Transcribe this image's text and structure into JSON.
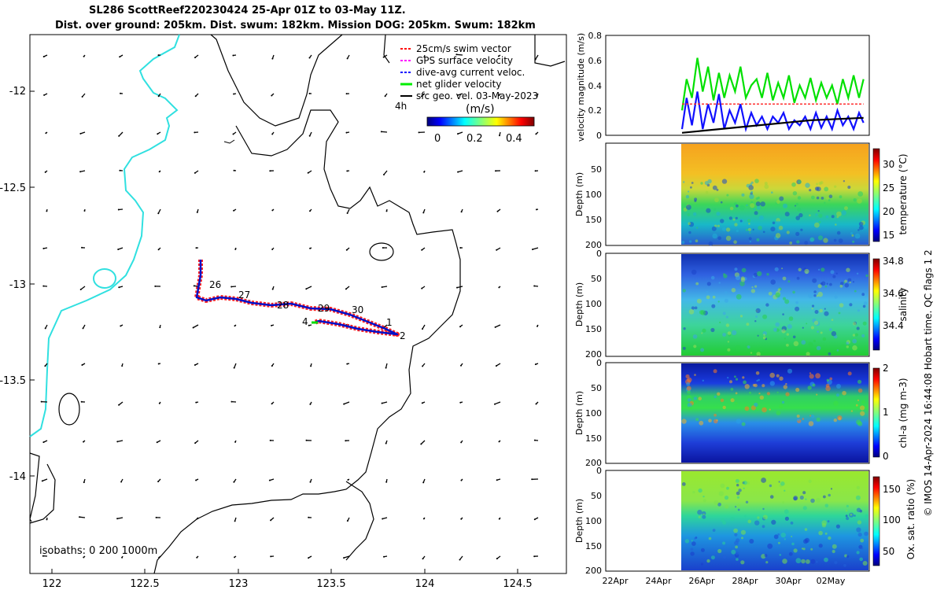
{
  "header": {
    "line1": "SL286 ScottReef220230424 25-Apr 01Z to 03-May 11Z.",
    "line2": "Dist. over ground: 205km. Dist. swum: 182km. Mission DOG: 205km. Swum: 182km"
  },
  "map": {
    "legend": {
      "items": [
        {
          "label": "25cm/s swim vector",
          "color": "#ff0000"
        },
        {
          "label": "GPS surface velocity",
          "color": "#ff00ff"
        },
        {
          "label": "dive-avg current veloc.",
          "color": "#0000ff"
        },
        {
          "label": "net glider velocity",
          "color": "#00ee00"
        },
        {
          "label": "sfc geo. vel. 03-May-2023",
          "color": "#000000"
        }
      ],
      "h_label": "4h"
    },
    "colorbar": {
      "unit": "(m/s)",
      "ticks": [
        "0",
        "0.2",
        "0.4"
      ]
    },
    "xticks": [
      "122",
      "122.5",
      "123",
      "123.5",
      "124",
      "124.5"
    ],
    "yticks": [
      "-12",
      "-12.5",
      "-13",
      "-13.5",
      "-14"
    ],
    "isobaths_label": "isobaths: 0   200  1000m",
    "day_labels": [
      "26",
      "27",
      "28",
      "29",
      "30",
      "1",
      "2",
      "4"
    ],
    "colors": {
      "coast": "#30e0e0",
      "isobath": "#000000",
      "swim": "#ff0000",
      "current": "#0000cc",
      "glider": "#00cc00"
    }
  },
  "chart_data": [
    {
      "type": "line",
      "title": "",
      "ylabel": "velocity magnitude (m/s)",
      "ylim": [
        0,
        0.8
      ],
      "yticks": [
        "0",
        "0.2",
        "0.4",
        "0.6",
        "0.8"
      ],
      "x_dates": [
        "2023-04-22",
        "2023-04-24",
        "2023-04-26",
        "2023-04-28",
        "2023-04-30",
        "2023-05-02"
      ],
      "series": [
        {
          "label": "net glider velocity",
          "color": "#00e000",
          "x": [
            "2023-04-25T01",
            "2023-04-25T06",
            "2023-04-25T12",
            "2023-04-25T18",
            "2023-04-26T00",
            "2023-04-26T06",
            "2023-04-26T12",
            "2023-04-26T18",
            "2023-04-27T00",
            "2023-04-27T06",
            "2023-04-27T12",
            "2023-04-27T18",
            "2023-04-28T00",
            "2023-04-28T06",
            "2023-04-28T12",
            "2023-04-28T18",
            "2023-04-29T00",
            "2023-04-29T06",
            "2023-04-29T12",
            "2023-04-29T18",
            "2023-04-30T00",
            "2023-04-30T06",
            "2023-04-30T12",
            "2023-04-30T18",
            "2023-05-01T00",
            "2023-05-01T06",
            "2023-05-01T12",
            "2023-05-01T18",
            "2023-05-02T00",
            "2023-05-02T06",
            "2023-05-02T12",
            "2023-05-02T18",
            "2023-05-03T00",
            "2023-05-03T06",
            "2023-05-03T11"
          ],
          "values": [
            0.2,
            0.45,
            0.3,
            0.62,
            0.35,
            0.55,
            0.28,
            0.5,
            0.3,
            0.48,
            0.35,
            0.55,
            0.3,
            0.4,
            0.45,
            0.3,
            0.5,
            0.28,
            0.42,
            0.3,
            0.48,
            0.26,
            0.4,
            0.3,
            0.46,
            0.28,
            0.42,
            0.3,
            0.4,
            0.25,
            0.45,
            0.3,
            0.48,
            0.3,
            0.45
          ]
        },
        {
          "label": "dive-avg current veloc.",
          "color": "#1010ff",
          "x": [
            "2023-04-25T01",
            "2023-04-25T06",
            "2023-04-25T12",
            "2023-04-25T18",
            "2023-04-26T00",
            "2023-04-26T06",
            "2023-04-26T12",
            "2023-04-26T18",
            "2023-04-27T00",
            "2023-04-27T06",
            "2023-04-27T12",
            "2023-04-27T18",
            "2023-04-28T00",
            "2023-04-28T06",
            "2023-04-28T12",
            "2023-04-28T18",
            "2023-04-29T00",
            "2023-04-29T06",
            "2023-04-29T12",
            "2023-04-29T18",
            "2023-04-30T00",
            "2023-04-30T06",
            "2023-04-30T12",
            "2023-04-30T18",
            "2023-05-01T00",
            "2023-05-01T06",
            "2023-05-01T12",
            "2023-05-01T18",
            "2023-05-02T00",
            "2023-05-02T06",
            "2023-05-02T12",
            "2023-05-02T18",
            "2023-05-03T00",
            "2023-05-03T06",
            "2023-05-03T11"
          ],
          "values": [
            0.05,
            0.3,
            0.08,
            0.35,
            0.05,
            0.25,
            0.1,
            0.33,
            0.05,
            0.2,
            0.1,
            0.25,
            0.05,
            0.18,
            0.08,
            0.15,
            0.05,
            0.15,
            0.1,
            0.18,
            0.05,
            0.12,
            0.08,
            0.15,
            0.05,
            0.18,
            0.06,
            0.15,
            0.05,
            0.2,
            0.08,
            0.15,
            0.05,
            0.18,
            0.1
          ]
        },
        {
          "label": "25cm/s swim vector",
          "color": "#ff3030",
          "x": [
            "2023-04-25T01",
            "2023-05-03T11"
          ],
          "values": [
            0.25,
            0.25
          ]
        },
        {
          "label": "sfc geo. vel. 03-May-2023",
          "color": "#000000",
          "x": [
            "2023-04-25T01",
            "2023-04-28T00",
            "2023-05-01T00",
            "2023-05-03T11"
          ],
          "values": [
            0.02,
            0.07,
            0.12,
            0.14
          ]
        }
      ]
    },
    {
      "type": "heatmap",
      "ylabel": "Depth (m)",
      "clabel": "temperature (°C)",
      "ylim": [
        0,
        200
      ],
      "yticks": [
        "0",
        "50",
        "100",
        "150",
        "200"
      ],
      "cticks": [
        "15",
        "20",
        "25",
        "30"
      ],
      "crange": [
        14,
        33
      ]
    },
    {
      "type": "heatmap",
      "ylabel": "Depth (m)",
      "clabel": "salinity",
      "ylim": [
        0,
        200
      ],
      "yticks": [
        "0",
        "50",
        "100",
        "150",
        "200"
      ],
      "cticks": [
        "34.4",
        "34.6",
        "34.8"
      ],
      "crange": [
        34.3,
        34.85
      ]
    },
    {
      "type": "heatmap",
      "ylabel": "Depth (m)",
      "clabel": "chl-a (mg m-3)",
      "ylim": [
        0,
        200
      ],
      "yticks": [
        "0",
        "50",
        "100",
        "150",
        "200"
      ],
      "cticks": [
        "0",
        "1",
        "2"
      ],
      "crange": [
        0,
        2
      ]
    },
    {
      "type": "heatmap",
      "ylabel": "Depth (m)",
      "clabel": "Ox. sat. ratio (%)",
      "ylim": [
        0,
        200
      ],
      "yticks": [
        "0",
        "50",
        "100",
        "150",
        "200"
      ],
      "cticks": [
        "50",
        "100",
        "150"
      ],
      "crange": [
        20,
        175
      ]
    }
  ],
  "time_axis": {
    "ticks": [
      "22Apr",
      "24Apr",
      "26Apr",
      "28Apr",
      "30Apr",
      "02May"
    ]
  },
  "side_note": "© IMOS 14-Apr-2024 16:44:08 Hobart time. QC flags 1  2"
}
